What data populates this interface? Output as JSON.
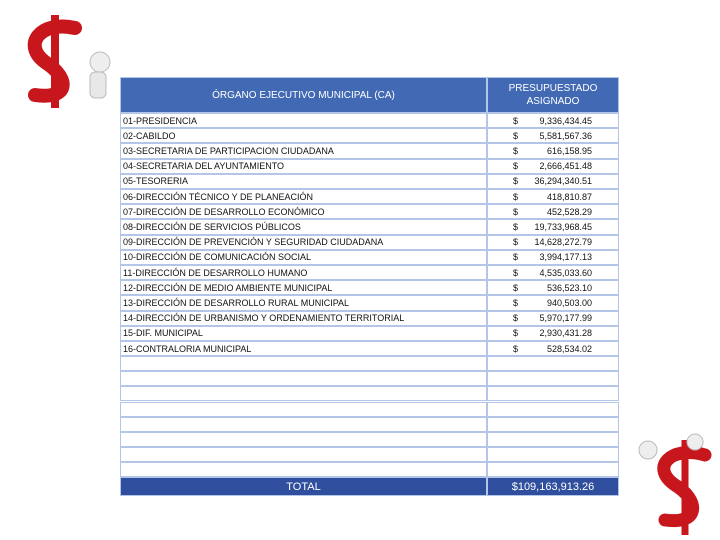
{
  "header": {
    "col1": "ÓRGANO EJECUTIVO MUNICIPAL (CA)",
    "col2": "PRESUPUESTADO ASIGNADO"
  },
  "rows": [
    {
      "name": "01-PRESIDENCIA",
      "currency": "$",
      "amount": "9,336,434.45"
    },
    {
      "name": "02-CABILDO",
      "currency": "$",
      "amount": "5,581,567.36"
    },
    {
      "name": "03-SECRETARIA DE PARTICIPACION CIUDADANA",
      "currency": "$",
      "amount": "616,158.95"
    },
    {
      "name": "04-SECRETARIA DEL AYUNTAMIENTO",
      "currency": "$",
      "amount": "2,666,451.48"
    },
    {
      "name": "05-TESORERIA",
      "currency": "$",
      "amount": "36,294,340.51"
    },
    {
      "name": "06-DIRECCIÓN TÉCNICO Y DE PLANEACIÓN",
      "currency": "$",
      "amount": "418,810.87"
    },
    {
      "name": "07-DIRECCIÓN DE DESARROLLO ECONÓMICO",
      "currency": "$",
      "amount": "452,528.29"
    },
    {
      "name": "08-DIRECCIÓN DE SERVICIOS PÚBLICOS",
      "currency": "$",
      "amount": "19,733,968.45"
    },
    {
      "name": "09-DIRECCIÓN DE PREVENCIÓN Y SEGURIDAD CIUDADANA",
      "currency": "$",
      "amount": "14,628,272.79"
    },
    {
      "name": "10-DIRECCIÓN DE COMUNICACIÓN SOCIAL",
      "currency": "$",
      "amount": "3,994,177.13"
    },
    {
      "name": "11-DIRECCIÓN DE DESARROLLO HUMANO",
      "currency": "$",
      "amount": "4,535,033.60"
    },
    {
      "name": "12-DIRECCIÓN DE MEDIO AMBIENTE MUNICIPAL",
      "currency": "$",
      "amount": "536,523.10"
    },
    {
      "name": "13-DIRECCIÓN DE DESARROLLO RURAL MUNICIPAL",
      "currency": "$",
      "amount": "940,503.00"
    },
    {
      "name": "14-DIRECCIÓN DE URBANISMO Y ORDENAMIENTO TERRITORIAL",
      "currency": "$",
      "amount": "5,970,177.99"
    },
    {
      "name": "15-DIF. MUNICIPAL",
      "currency": "$",
      "amount": "2,930,431.28"
    },
    {
      "name": "16-CONTRALORIA MUNICIPAL",
      "currency": "$",
      "amount": "528,534.02"
    }
  ],
  "total": {
    "label": "TOTAL",
    "amount": "$109,163,913.26"
  }
}
